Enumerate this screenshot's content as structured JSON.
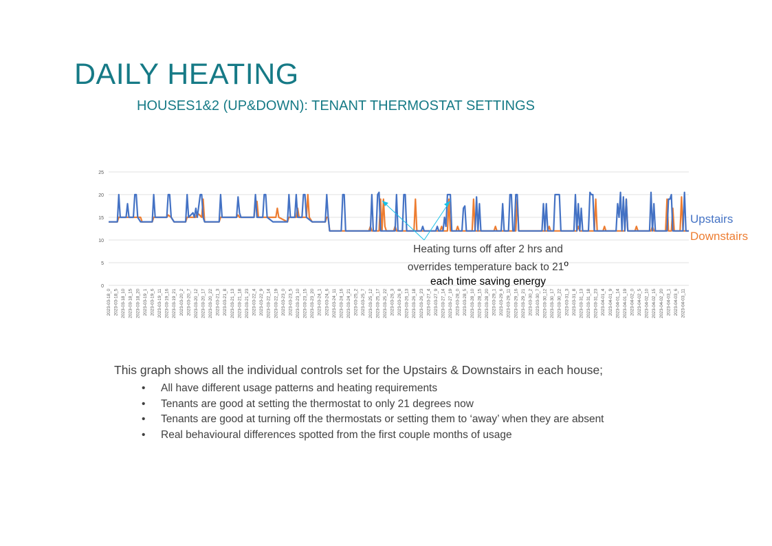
{
  "slide": {
    "title": "DAILY HEATING",
    "subtitle": "HOUSES1&2 (UP&DOWN): TENANT THERMOSTAT SETTINGS",
    "annotation": {
      "line1": "Heating turns off after 2 hrs and",
      "line2": "overrides temperature back to 21",
      "degree_symbol": "o",
      "line3": "each time saving energy"
    },
    "description": {
      "lead": "This graph shows all the individual controls set for the Upstairs & Downstairs in each house;",
      "bullet_symbol": "•",
      "bullets": [
        "All have different usage patterns and heating requirements",
        "Tenants are good at setting the thermostat to only 21 degrees now",
        "Tenants are good at turning off the thermostats or setting them to ‘away’ when they are absent",
        "Real behavioural differences spotted from the first couple months of usage"
      ]
    }
  },
  "chart_data": {
    "type": "line",
    "ylim": [
      0,
      25
    ],
    "y_ticks": [
      0,
      5,
      10,
      15,
      20,
      25
    ],
    "grid": true,
    "legend_placement": "right",
    "x_tick_labels": [
      "2023-03-18_0",
      "2023-03-18_5",
      "2023-03-18_10",
      "2023-03-18_15",
      "2023-03-18_20",
      "2023-03-19_1",
      "2023-03-19_6",
      "2023-03-19_11",
      "2023-03-19_16",
      "2023-03-19_21",
      "2023-03-20_2",
      "2023-03-20_7",
      "2023-03-20_12",
      "2023-03-20_17",
      "2023-03-20_22",
      "2023-03-21_3",
      "2023-03-21_8",
      "2023-03-21_13",
      "2023-03-21_18",
      "2023-03-21_23",
      "2023-03-22_4",
      "2023-03-22_9",
      "2023-03-22_14",
      "2023-03-22_19",
      "2023-03-23_0",
      "2023-03-23_5",
      "2023-03-23_10",
      "2023-03-23_15",
      "2023-03-23_20",
      "2023-03-24_1",
      "2023-03-24_6",
      "2023-03-24_11",
      "2023-03-24_16",
      "2023-03-24_21",
      "2023-03-25_2",
      "2023-03-25_7",
      "2023-03-25_12",
      "2023-03-25_17",
      "2023-03-25_22",
      "2023-03-26_3",
      "2023-03-26_8",
      "2023-03-26_13",
      "2023-03-26_18",
      "2023-03-26_23",
      "2023-03-27_4",
      "2023-03-27_9",
      "2023-03-27_14",
      "2023-03-27_19",
      "2023-03-28_0",
      "2023-03-28_5",
      "2023-03-28_10",
      "2023-03-28_15",
      "2023-03-28_20",
      "2023-03-29_1",
      "2023-03-29_6",
      "2023-03-29_11",
      "2023-03-29_16",
      "2023-03-29_21",
      "2023-03-30_2",
      "2023-03-30_7",
      "2023-03-30_12",
      "2023-03-30_17",
      "2023-03-30_22",
      "2023-03-31_3",
      "2023-03-31_8",
      "2023-03-31_13",
      "2023-03-31_18",
      "2023-03-31_23",
      "2023-04-01_4",
      "2023-04-01_9",
      "2023-04-01_14",
      "2023-04-01_19",
      "2023-04-02_0",
      "2023-04-02_5",
      "2023-04-02_10",
      "2023-04-02_15",
      "2023-04-02_20",
      "2023-04-03_1",
      "2023-04-03_6",
      "2023-04-03_11"
    ],
    "x_positions": [
      0,
      5,
      10,
      15,
      20,
      25,
      30,
      35,
      40,
      45,
      50,
      55,
      60,
      65,
      70,
      75,
      80,
      85,
      90,
      95,
      100,
      105,
      110,
      115,
      120,
      125,
      130,
      135,
      140,
      145,
      150,
      155,
      160,
      165,
      170,
      175,
      180,
      185,
      190,
      195,
      200,
      205,
      210,
      215,
      220,
      225,
      230,
      235,
      240,
      245,
      250,
      255,
      260,
      265,
      270,
      275,
      280,
      285,
      290,
      295,
      300,
      305,
      310,
      315,
      320,
      325,
      330,
      335,
      340,
      345,
      350,
      355,
      360,
      365,
      370,
      375,
      380,
      385,
      390,
      395
    ],
    "x_range": [
      0,
      399
    ],
    "series": [
      {
        "name": "Upstairs",
        "color": "#4472c4",
        "points": [
          [
            0,
            14
          ],
          [
            6,
            14
          ],
          [
            7,
            20
          ],
          [
            8,
            15
          ],
          [
            12,
            15
          ],
          [
            13,
            18
          ],
          [
            14,
            15
          ],
          [
            17,
            15
          ],
          [
            18,
            20
          ],
          [
            19,
            20
          ],
          [
            20,
            15
          ],
          [
            22,
            14
          ],
          [
            30,
            14
          ],
          [
            31,
            20
          ],
          [
            32,
            15
          ],
          [
            40,
            15
          ],
          [
            41,
            20
          ],
          [
            42,
            20
          ],
          [
            43,
            15
          ],
          [
            45,
            14
          ],
          [
            53,
            14
          ],
          [
            54,
            20
          ],
          [
            55,
            15
          ],
          [
            58,
            16
          ],
          [
            59,
            15
          ],
          [
            60,
            17
          ],
          [
            61,
            15
          ],
          [
            63,
            20
          ],
          [
            64,
            20
          ],
          [
            65,
            15
          ],
          [
            66,
            14
          ],
          [
            76,
            14
          ],
          [
            77,
            20
          ],
          [
            78,
            15
          ],
          [
            88,
            15
          ],
          [
            89,
            19.5
          ],
          [
            90,
            16
          ],
          [
            91,
            15
          ],
          [
            100,
            15
          ],
          [
            101,
            20
          ],
          [
            102,
            15
          ],
          [
            106,
            15
          ],
          [
            107,
            20
          ],
          [
            108,
            20
          ],
          [
            109,
            15
          ],
          [
            113,
            14
          ],
          [
            123,
            14
          ],
          [
            124,
            20
          ],
          [
            125,
            15
          ],
          [
            128,
            15
          ],
          [
            129,
            20
          ],
          [
            130,
            15
          ],
          [
            133,
            15
          ],
          [
            134,
            20
          ],
          [
            135,
            20
          ],
          [
            136,
            15
          ],
          [
            140,
            14
          ],
          [
            149,
            14
          ],
          [
            150,
            20
          ],
          [
            151,
            15
          ],
          [
            152,
            12
          ],
          [
            160,
            12
          ],
          [
            161,
            20
          ],
          [
            162,
            20
          ],
          [
            163,
            12
          ],
          [
            180,
            12
          ],
          [
            181,
            20
          ],
          [
            182,
            12
          ],
          [
            183,
            12
          ],
          [
            184,
            12
          ],
          [
            185,
            20
          ],
          [
            186,
            20.5
          ],
          [
            187,
            12
          ],
          [
            197,
            12
          ],
          [
            198,
            20
          ],
          [
            199,
            12
          ],
          [
            200,
            12
          ],
          [
            202,
            12
          ],
          [
            203,
            20
          ],
          [
            204,
            20
          ],
          [
            205,
            12
          ],
          [
            215,
            12
          ],
          [
            216,
            13
          ],
          [
            217,
            12
          ],
          [
            225,
            12
          ],
          [
            226,
            13
          ],
          [
            227,
            12
          ],
          [
            230,
            12
          ],
          [
            231,
            15
          ],
          [
            232,
            13
          ],
          [
            233,
            20
          ],
          [
            234,
            20
          ],
          [
            235,
            20
          ],
          [
            236,
            12
          ],
          [
            243,
            12
          ],
          [
            244,
            17
          ],
          [
            245,
            17.5
          ],
          [
            246,
            12
          ],
          [
            252,
            12
          ],
          [
            253,
            19.5
          ],
          [
            254,
            12
          ],
          [
            255,
            18
          ],
          [
            256,
            12
          ],
          [
            270,
            12
          ],
          [
            271,
            18
          ],
          [
            272,
            12
          ],
          [
            275,
            12
          ],
          [
            276,
            20
          ],
          [
            277,
            20
          ],
          [
            278,
            12
          ],
          [
            279,
            12
          ],
          [
            280,
            20
          ],
          [
            281,
            20
          ],
          [
            282,
            12
          ],
          [
            298,
            12
          ],
          [
            299,
            18
          ],
          [
            300,
            12
          ],
          [
            301,
            18
          ],
          [
            302,
            12
          ],
          [
            306,
            12
          ],
          [
            307,
            20
          ],
          [
            308,
            20
          ],
          [
            309,
            20
          ],
          [
            310,
            20
          ],
          [
            311,
            12
          ],
          [
            320,
            12
          ],
          [
            321,
            20
          ],
          [
            322,
            12
          ],
          [
            323,
            18
          ],
          [
            324,
            12
          ],
          [
            325,
            17
          ],
          [
            326,
            12
          ],
          [
            330,
            12
          ],
          [
            331,
            20.5
          ],
          [
            332,
            20
          ],
          [
            333,
            20
          ],
          [
            334,
            12
          ],
          [
            349,
            12
          ],
          [
            350,
            18
          ],
          [
            351,
            15
          ],
          [
            352,
            20.5
          ],
          [
            353,
            12
          ],
          [
            354,
            19.5
          ],
          [
            355,
            12
          ],
          [
            356,
            19
          ],
          [
            357,
            12
          ],
          [
            372,
            12
          ],
          [
            373,
            20.5
          ],
          [
            374,
            12
          ],
          [
            375,
            18
          ],
          [
            376,
            12
          ],
          [
            384,
            12
          ],
          [
            385,
            19
          ],
          [
            386,
            19
          ],
          [
            387,
            20
          ],
          [
            388,
            12
          ],
          [
            395,
            12
          ],
          [
            396,
            20.5
          ],
          [
            397,
            12
          ],
          [
            399,
            12
          ]
        ]
      },
      {
        "name": "Downstairs",
        "color": "#ed7d31",
        "points": [
          [
            0,
            14
          ],
          [
            6,
            14
          ],
          [
            7,
            15
          ],
          [
            22,
            15
          ],
          [
            23,
            14
          ],
          [
            30,
            14
          ],
          [
            31,
            15
          ],
          [
            40,
            15
          ],
          [
            41,
            15.5
          ],
          [
            43,
            15
          ],
          [
            45,
            14
          ],
          [
            53,
            14
          ],
          [
            54,
            15
          ],
          [
            60,
            15
          ],
          [
            61,
            16
          ],
          [
            64,
            15
          ],
          [
            65,
            19
          ],
          [
            66,
            14
          ],
          [
            76,
            14
          ],
          [
            77,
            15
          ],
          [
            88,
            15
          ],
          [
            89,
            15.5
          ],
          [
            90,
            15
          ],
          [
            100,
            15
          ],
          [
            101,
            18.5
          ],
          [
            102,
            18.5
          ],
          [
            103,
            15
          ],
          [
            115,
            15
          ],
          [
            116,
            17
          ],
          [
            117,
            15
          ],
          [
            123,
            14
          ],
          [
            124,
            15
          ],
          [
            129,
            15
          ],
          [
            130,
            17
          ],
          [
            131,
            15
          ],
          [
            136,
            15
          ],
          [
            137,
            20
          ],
          [
            138,
            15
          ],
          [
            140,
            14
          ],
          [
            149,
            14
          ],
          [
            150,
            15
          ],
          [
            151,
            15
          ],
          [
            152,
            12
          ],
          [
            179,
            12
          ],
          [
            180,
            13
          ],
          [
            181,
            12
          ],
          [
            186,
            12
          ],
          [
            187,
            19
          ],
          [
            188,
            12
          ],
          [
            189,
            19
          ],
          [
            190,
            13
          ],
          [
            191,
            12
          ],
          [
            196,
            12
          ],
          [
            197,
            13
          ],
          [
            198,
            12
          ],
          [
            210,
            12
          ],
          [
            211,
            19
          ],
          [
            212,
            12
          ],
          [
            228,
            12
          ],
          [
            229,
            13
          ],
          [
            230,
            12
          ],
          [
            233,
            12
          ],
          [
            234,
            19
          ],
          [
            235,
            12
          ],
          [
            239,
            12
          ],
          [
            240,
            13
          ],
          [
            241,
            12
          ],
          [
            250,
            12
          ],
          [
            251,
            19
          ],
          [
            252,
            12
          ],
          [
            265,
            12
          ],
          [
            266,
            13
          ],
          [
            267,
            12
          ],
          [
            280,
            12
          ],
          [
            281,
            19
          ],
          [
            282,
            12
          ],
          [
            302,
            12
          ],
          [
            303,
            13
          ],
          [
            304,
            12
          ],
          [
            322,
            12
          ],
          [
            323,
            13
          ],
          [
            324,
            12
          ],
          [
            334,
            12
          ],
          [
            335,
            19
          ],
          [
            336,
            12
          ],
          [
            340,
            12
          ],
          [
            341,
            13
          ],
          [
            342,
            12
          ],
          [
            355,
            12
          ],
          [
            356,
            19
          ],
          [
            357,
            12
          ],
          [
            362,
            12
          ],
          [
            363,
            13
          ],
          [
            364,
            12
          ],
          [
            373,
            12
          ],
          [
            374,
            13
          ],
          [
            375,
            12
          ],
          [
            383,
            12
          ],
          [
            384,
            19
          ],
          [
            385,
            12
          ],
          [
            387,
            12
          ],
          [
            388,
            17
          ],
          [
            389,
            12
          ],
          [
            393,
            12
          ],
          [
            394,
            19.5
          ],
          [
            395,
            12
          ],
          [
            399,
            12
          ]
        ]
      }
    ]
  }
}
